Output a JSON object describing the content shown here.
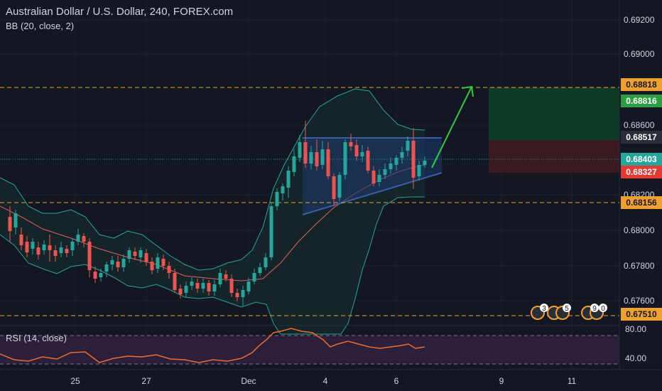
{
  "header": {
    "title": "Australian Dollar / U.S. Dollar, 240, FOREX.com",
    "indicator": "BB (20, close, 2)"
  },
  "rsi": {
    "label": "RSI (14, close)",
    "ticks": [
      "80.00",
      "40.00"
    ]
  },
  "colors": {
    "background": "#131722",
    "up": "#26a69a",
    "down": "#ef5350",
    "bb_band": "#26a69a",
    "bb_basis": "#e35e5e",
    "orange": "#f0a030",
    "blue_label": "#1e88e5",
    "green_zone": "#0f3b26",
    "red_zone": "#3a1a20",
    "arrow": "#2ecc40",
    "rsi_line": "#ef6c2c",
    "rsi_fill": "#2b1f3c"
  },
  "chart_data": {
    "type": "candlestick",
    "title": "Australian Dollar / U.S. Dollar, 240, FOREX.com",
    "y_ticks": [
      "0.69200",
      "0.69000",
      "0.68600",
      "0.68200",
      "0.68000",
      "0.67800",
      "0.67600"
    ],
    "x_ticks": [
      "25",
      "27",
      "Dec",
      "4",
      "6",
      "9",
      "11"
    ],
    "price_labels": [
      {
        "text": "0.68818",
        "bg": "#f0a030",
        "fg": "#131722"
      },
      {
        "text": "0.68816",
        "bg": "#2e9e44",
        "fg": "#ffffff"
      },
      {
        "text": "0.68517",
        "bg": "#2a2e39",
        "fg": "#ffffff"
      },
      {
        "text": "0.68403",
        "bg": "#26a69a",
        "fg": "#ffffff"
      },
      {
        "text": "0.68327",
        "bg": "#e53935",
        "fg": "#ffffff"
      },
      {
        "text": "0.68156",
        "bg": "#f0a030",
        "fg": "#131722"
      },
      {
        "text": "0.67510",
        "bg": "#f0a030",
        "fg": "#131722"
      }
    ],
    "event_markers": [
      {
        "text": "3"
      },
      {
        "text": "5"
      },
      {
        "text": "9"
      },
      {
        "text": "0"
      }
    ]
  }
}
